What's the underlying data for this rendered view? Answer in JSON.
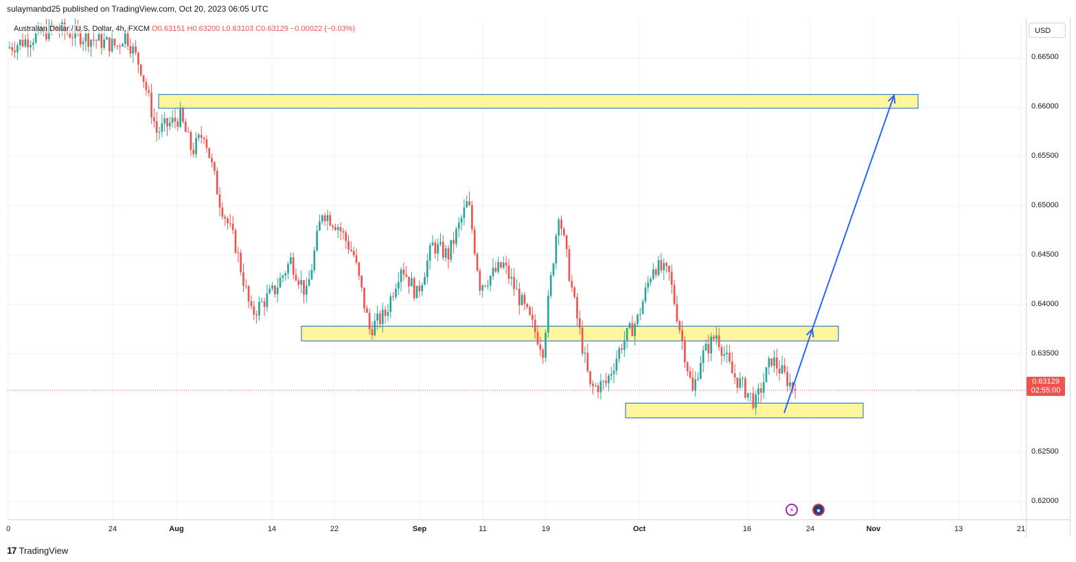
{
  "header": {
    "published": "sulaymanbd25 published on TradingView.com, Oct 20, 2023 06:05 UTC"
  },
  "legend": {
    "symbol": "Australian Dollar / U.S. Dollar, 4h, FXCM",
    "open": "O0.63151",
    "high": "H0.63200",
    "low": "L0.63103",
    "close": "C0.63129",
    "change": "−0.00022 (−0.03%)"
  },
  "price_scale": {
    "currency": "USD",
    "ticks": [
      "0.66500",
      "0.66000",
      "0.65500",
      "0.65000",
      "0.64500",
      "0.64000",
      "0.63500",
      "0.62500",
      "0.62000"
    ],
    "last_price": "0.63129",
    "countdown": "02:55:00"
  },
  "time_scale": {
    "ticks": [
      {
        "label": "0",
        "major": false
      },
      {
        "label": "24",
        "major": false
      },
      {
        "label": "Aug",
        "major": true
      },
      {
        "label": "14",
        "major": false
      },
      {
        "label": "22",
        "major": false
      },
      {
        "label": "Sep",
        "major": true
      },
      {
        "label": "11",
        "major": false
      },
      {
        "label": "19",
        "major": false
      },
      {
        "label": "Oct",
        "major": true
      },
      {
        "label": "16",
        "major": false
      },
      {
        "label": "24",
        "major": false
      },
      {
        "label": "Nov",
        "major": true
      },
      {
        "label": "13",
        "major": false
      },
      {
        "label": "21",
        "major": false
      }
    ]
  },
  "events": {
    "bolt_icon": "lightning-icon",
    "flag_icon": "australia-flag-icon"
  },
  "footer": {
    "logo": "17",
    "brand": "TradingView"
  },
  "colors": {
    "up": "#26a69a",
    "down": "#ef5350",
    "zone_fill": "#fff59d",
    "zone_border": "#1565c0",
    "arrow": "#2962ff"
  },
  "chart_data": {
    "type": "candlestick",
    "instrument": "Australian Dollar / U.S. Dollar, 4h, FXCM",
    "ylim": [
      0.6182,
      0.669
    ],
    "path_anchors": [
      {
        "t": 0,
        "p": 0.666
      },
      {
        "t": 0.06,
        "p": 0.668
      },
      {
        "t": 0.14,
        "p": 0.6662
      },
      {
        "t": 0.15,
        "p": 0.6675
      },
      {
        "t": 0.17,
        "p": 0.664
      },
      {
        "t": 0.19,
        "p": 0.6575
      },
      {
        "t": 0.22,
        "p": 0.659
      },
      {
        "t": 0.235,
        "p": 0.6555
      },
      {
        "t": 0.25,
        "p": 0.6575
      },
      {
        "t": 0.27,
        "p": 0.6505
      },
      {
        "t": 0.29,
        "p": 0.646
      },
      {
        "t": 0.31,
        "p": 0.639
      },
      {
        "t": 0.34,
        "p": 0.6415
      },
      {
        "t": 0.36,
        "p": 0.6445
      },
      {
        "t": 0.38,
        "p": 0.641
      },
      {
        "t": 0.4,
        "p": 0.6495
      },
      {
        "t": 0.42,
        "p": 0.648
      },
      {
        "t": 0.44,
        "p": 0.645
      },
      {
        "t": 0.46,
        "p": 0.6375
      },
      {
        "t": 0.48,
        "p": 0.639
      },
      {
        "t": 0.5,
        "p": 0.644
      },
      {
        "t": 0.52,
        "p": 0.641
      },
      {
        "t": 0.54,
        "p": 0.646
      },
      {
        "t": 0.56,
        "p": 0.645
      },
      {
        "t": 0.585,
        "p": 0.6505
      },
      {
        "t": 0.6,
        "p": 0.642
      },
      {
        "t": 0.63,
        "p": 0.644
      },
      {
        "t": 0.66,
        "p": 0.639
      },
      {
        "t": 0.68,
        "p": 0.6355
      },
      {
        "t": 0.7,
        "p": 0.6495
      },
      {
        "t": 0.72,
        "p": 0.64
      },
      {
        "t": 0.74,
        "p": 0.6315
      },
      {
        "t": 0.76,
        "p": 0.632
      },
      {
        "t": 0.78,
        "p": 0.636
      },
      {
        "t": 0.8,
        "p": 0.6385
      },
      {
        "t": 0.82,
        "p": 0.644
      },
      {
        "t": 0.84,
        "p": 0.643
      },
      {
        "t": 0.86,
        "p": 0.635
      },
      {
        "t": 0.87,
        "p": 0.631
      },
      {
        "t": 0.88,
        "p": 0.6345
      },
      {
        "t": 0.9,
        "p": 0.637
      },
      {
        "t": 0.92,
        "p": 0.633
      },
      {
        "t": 0.95,
        "p": 0.63
      },
      {
        "t": 0.97,
        "p": 0.6345
      },
      {
        "t": 1.0,
        "p": 0.6313
      }
    ],
    "candle_count": 300,
    "last_price": 0.63129,
    "zones": [
      {
        "low": 0.6599,
        "high": 0.6613
      },
      {
        "low": 0.6363,
        "high": 0.6378
      },
      {
        "low": 0.6285,
        "high": 0.63
      }
    ],
    "projection_path": [
      0.629,
      0.6375,
      0.6612
    ]
  }
}
